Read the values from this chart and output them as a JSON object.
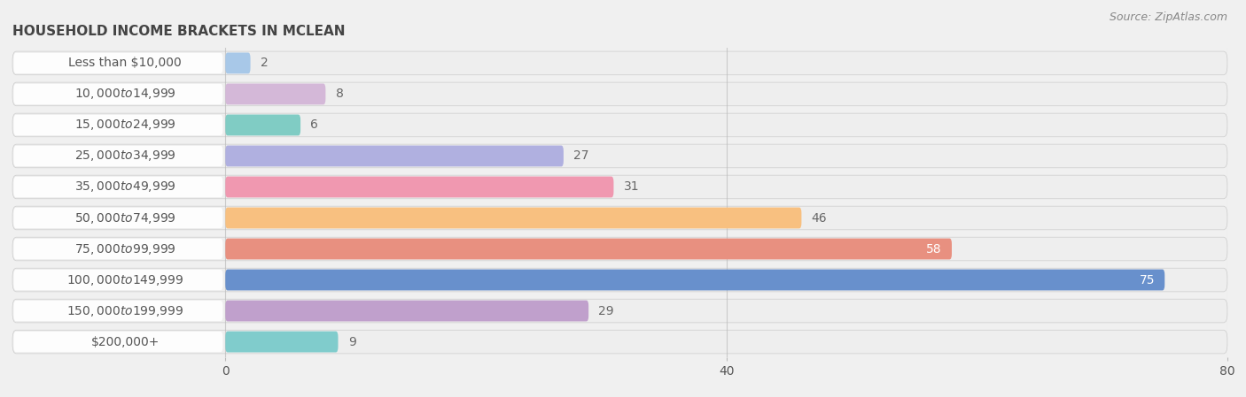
{
  "title": "HOUSEHOLD INCOME BRACKETS IN MCLEAN",
  "source": "Source: ZipAtlas.com",
  "categories": [
    "Less than $10,000",
    "$10,000 to $14,999",
    "$15,000 to $24,999",
    "$25,000 to $34,999",
    "$35,000 to $49,999",
    "$50,000 to $74,999",
    "$75,000 to $99,999",
    "$100,000 to $149,999",
    "$150,000 to $199,999",
    "$200,000+"
  ],
  "values": [
    2,
    8,
    6,
    27,
    31,
    46,
    58,
    75,
    29,
    9
  ],
  "bar_colors": [
    "#a8c8e8",
    "#d4b8d8",
    "#80ccc4",
    "#b0b0e0",
    "#f098b0",
    "#f8c080",
    "#e89080",
    "#6890cc",
    "#c0a0cc",
    "#80cccc"
  ],
  "xlim_data": [
    0,
    80
  ],
  "xticks": [
    0,
    40,
    80
  ],
  "bar_height": 0.68,
  "label_fontsize": 10,
  "value_fontsize": 10,
  "title_fontsize": 11,
  "source_fontsize": 9,
  "background_color": "#f0f0f0",
  "row_bg_color": "#e8e8e8",
  "bar_bg_color": "#e0e0e8",
  "white_label_bg": "#ffffff",
  "grid_color": "#bbbbbb",
  "title_color": "#444444",
  "label_color": "#555555",
  "value_color_inside": "#ffffff",
  "value_color_outside": "#666666",
  "inside_threshold": 50
}
